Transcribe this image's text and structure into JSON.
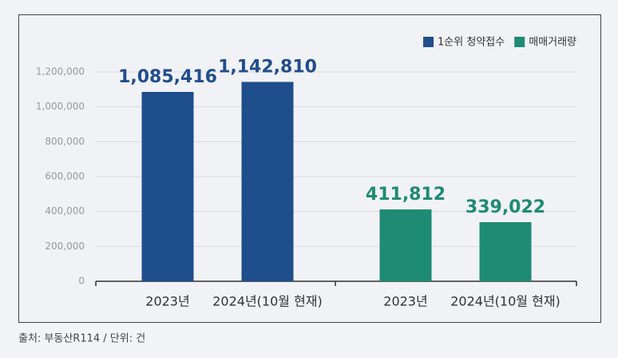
{
  "chart_data": {
    "type": "bar",
    "categories": [
      "2023년",
      "2024년(10월 현재)",
      "2023년",
      "2024년(10월 현재)"
    ],
    "series": [
      {
        "name": "1순위 청약접수",
        "color": "#1f4e8c",
        "values": [
          1085416,
          1142810,
          null,
          null
        ],
        "value_labels": [
          "1,085,416",
          "1,142,810",
          null,
          null
        ]
      },
      {
        "name": "매매거래량",
        "color": "#1e8b74",
        "values": [
          null,
          null,
          411812,
          339022
        ],
        "value_labels": [
          null,
          null,
          "411,812",
          "339,022"
        ]
      }
    ],
    "ylim": [
      0,
      1200000
    ],
    "yticks": [
      0,
      {
        "value": 200000,
        "label": "200,000"
      },
      {
        "value": 400000,
        "label": "400,000"
      },
      {
        "value": 600000,
        "label": "600,000"
      },
      {
        "value": 800000,
        "label": "800,000"
      },
      {
        "value": 1000000,
        "label": "1,000,000"
      },
      {
        "value": 1200000,
        "label": "1,200,000"
      }
    ],
    "grid": true,
    "legend": "top-right",
    "source": "출처: 부동산R114 / 단위: 건"
  }
}
